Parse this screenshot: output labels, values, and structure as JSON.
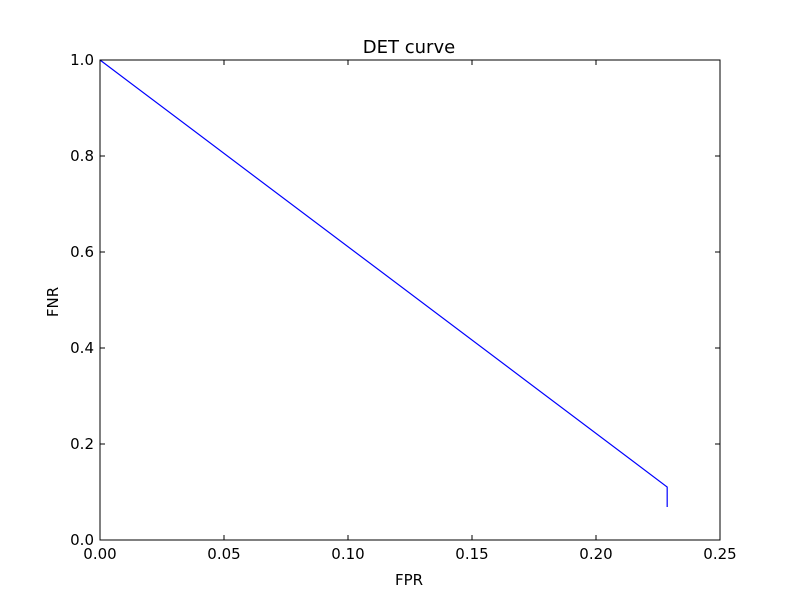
{
  "chart_data": {
    "type": "line",
    "title": "DET curve",
    "xlabel": "FPR",
    "ylabel": "FNR",
    "xlim": [
      0.0,
      0.25
    ],
    "ylim": [
      0.0,
      1.0
    ],
    "xticks": [
      "0.00",
      "0.05",
      "0.10",
      "0.15",
      "0.20",
      "0.25"
    ],
    "yticks": [
      "0.0",
      "0.2",
      "0.4",
      "0.6",
      "0.8",
      "1.0"
    ],
    "grid": false,
    "legend": "none",
    "series": [
      {
        "color": "#0000ff",
        "points": [
          {
            "x": 0.0,
            "y": 1.0
          },
          {
            "x": 0.2287,
            "y": 0.1104
          },
          {
            "x": 0.2287,
            "y": 0.0688
          }
        ]
      }
    ]
  }
}
